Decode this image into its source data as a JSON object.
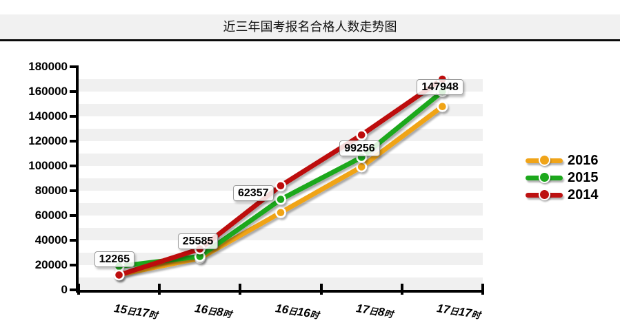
{
  "title": "近三年国考报名合格人数走势图",
  "chart_data": {
    "type": "line",
    "title": "近三年国考报名合格人数走势图",
    "categories": [
      "15日17时",
      "16日8时",
      "16日16时",
      "17日8时",
      "17日17时"
    ],
    "series": [
      {
        "name": "2016",
        "color": "#F0A419",
        "values": [
          12265,
          25585,
          62357,
          99256,
          147948
        ]
      },
      {
        "name": "2015",
        "color": "#1CA81C",
        "values": [
          19000,
          27000,
          73000,
          107000,
          160000
        ]
      },
      {
        "name": "2014",
        "color": "#BD1111",
        "values": [
          12000,
          33000,
          84000,
          125000,
          170000
        ]
      }
    ],
    "point_labels": [
      "12265",
      "25585",
      "62357",
      "99256",
      "147948"
    ],
    "labeled_series": "2016",
    "ylim": [
      0,
      180000
    ],
    "ytick_step": 20000,
    "yticks": [
      "0",
      "20000",
      "40000",
      "60000",
      "80000",
      "100000",
      "120000",
      "140000",
      "160000",
      "180000"
    ],
    "grid": "alternating-horizontal-bands",
    "band_colors": [
      "#F0F0F0",
      "#FFFFFF"
    ],
    "legend_position": "right"
  },
  "legend": {
    "items": [
      {
        "label": "2016",
        "color": "#F0A419"
      },
      {
        "label": "2015",
        "color": "#1CA81C"
      },
      {
        "label": "2014",
        "color": "#BD1111"
      }
    ]
  }
}
